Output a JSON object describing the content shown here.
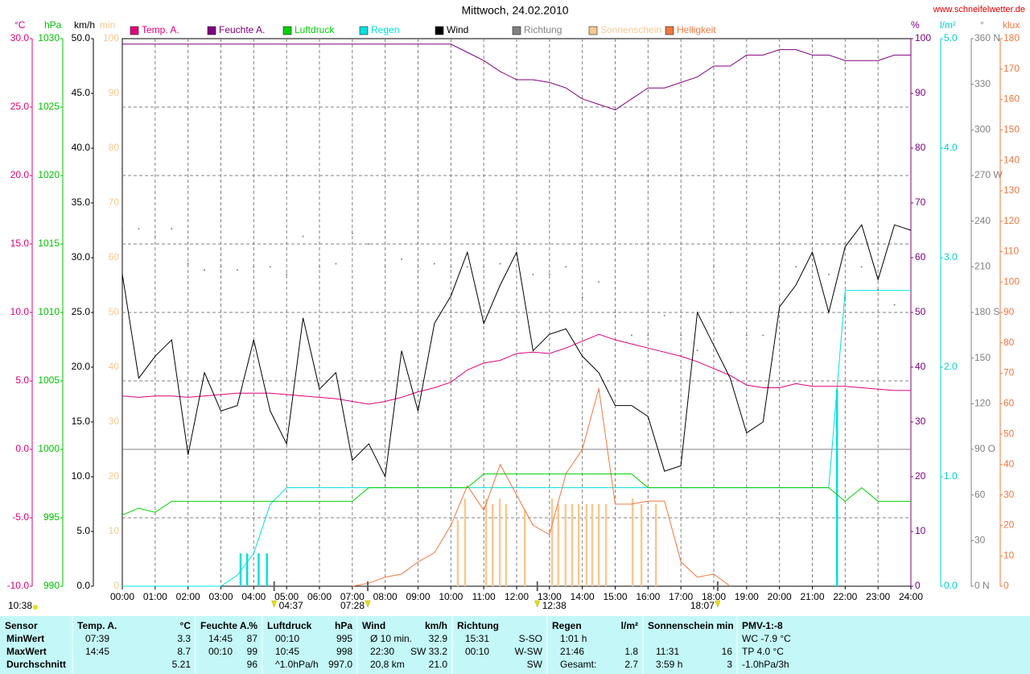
{
  "chart_data": {
    "type": "line",
    "title": "Mittwoch, 24.02.2010",
    "source": "www.schneifelwetter.de",
    "xlim": [
      0,
      24
    ],
    "xticks": [
      {
        "value": 0,
        "label": "00:00"
      },
      {
        "value": 1,
        "label": "01:00"
      },
      {
        "value": 2,
        "label": "02:00"
      },
      {
        "value": 3,
        "label": "03:00"
      },
      {
        "value": 4,
        "label": "04:00"
      },
      {
        "value": 5,
        "label": "05:00"
      },
      {
        "value": 6,
        "label": "06:00"
      },
      {
        "value": 7,
        "label": "07:00"
      },
      {
        "value": 8,
        "label": "08:00"
      },
      {
        "value": 9,
        "label": "09:00"
      },
      {
        "value": 10,
        "label": "10:00"
      },
      {
        "value": 11,
        "label": "11:00"
      },
      {
        "value": 12,
        "label": "12:00"
      },
      {
        "value": 13,
        "label": "13:00"
      },
      {
        "value": 14,
        "label": "14:00"
      },
      {
        "value": 15,
        "label": "15:00"
      },
      {
        "value": 16,
        "label": "16:00"
      },
      {
        "value": 17,
        "label": "17:00"
      },
      {
        "value": 18,
        "label": "18:00"
      },
      {
        "value": 19,
        "label": "19:00"
      },
      {
        "value": 20,
        "label": "20:00"
      },
      {
        "value": 21,
        "label": "21:00"
      },
      {
        "value": 22,
        "label": "22:00"
      },
      {
        "value": 23,
        "label": "23:00"
      },
      {
        "value": 24,
        "label": "24:00"
      }
    ],
    "grid": true,
    "axes": [
      {
        "unit": "°C",
        "color": "#e0007a",
        "lim": [
          -10,
          30
        ],
        "ticks": [
          {
            "value": -10,
            "label": "-10.0"
          },
          {
            "value": -5,
            "label": "-5.0"
          },
          {
            "value": 0,
            "label": "0.0"
          },
          {
            "value": 5,
            "label": "5.0"
          },
          {
            "value": 10,
            "label": "10.0"
          },
          {
            "value": 15,
            "label": "15.0"
          },
          {
            "value": 20,
            "label": "20.0"
          },
          {
            "value": 25,
            "label": "25.0"
          },
          {
            "value": 30,
            "label": "30.0"
          }
        ]
      },
      {
        "unit": "hPa",
        "color": "#00c000",
        "lim": [
          990,
          1030
        ],
        "ticks": [
          990,
          995,
          1000,
          1005,
          1010,
          1015,
          1020,
          1025,
          1030
        ]
      },
      {
        "unit": "km/h",
        "color": "#000000",
        "lim": [
          0,
          50
        ],
        "ticks": [
          {
            "value": 0,
            "label": "0.0"
          },
          {
            "value": 5,
            "label": "5.0"
          },
          {
            "value": 10,
            "label": "10.0"
          },
          {
            "value": 15,
            "label": "15.0"
          },
          {
            "value": 20,
            "label": "20.0"
          },
          {
            "value": 25,
            "label": "25.0"
          },
          {
            "value": 30,
            "label": "30.0"
          },
          {
            "value": 35,
            "label": "35.0"
          },
          {
            "value": 40,
            "label": "40.0"
          },
          {
            "value": 45,
            "label": "45.0"
          },
          {
            "value": 50,
            "label": "50.0"
          }
        ]
      },
      {
        "unit": "min",
        "color": "#f8c890",
        "lim": [
          0,
          100
        ],
        "ticks": [
          0,
          10,
          20,
          30,
          40,
          50,
          60,
          70,
          80,
          90,
          100
        ]
      },
      {
        "unit": "%",
        "color": "#800080",
        "lim": [
          0,
          100
        ],
        "ticks": [
          0,
          10,
          20,
          30,
          40,
          50,
          60,
          70,
          80,
          90,
          100
        ]
      },
      {
        "unit": "l/m²",
        "color": "#00d0d0",
        "lim": [
          0,
          5
        ],
        "ticks": [
          {
            "value": 0,
            "label": "0.0"
          },
          {
            "value": 1,
            "label": "1.0"
          },
          {
            "value": 2,
            "label": "2.0"
          },
          {
            "value": 3,
            "label": "3.0"
          },
          {
            "value": 4,
            "label": "4.0"
          },
          {
            "value": 5,
            "label": "5.0"
          }
        ]
      },
      {
        "unit": "°",
        "color": "#808080",
        "lim": [
          0,
          360
        ],
        "ticks": [
          {
            "value": 0,
            "label": "0 N"
          },
          30,
          60,
          {
            "value": 90,
            "label": "90 O"
          },
          120,
          150,
          {
            "value": 180,
            "label": "180 S"
          },
          210,
          240,
          {
            "value": 270,
            "label": "270 W"
          },
          300,
          330,
          {
            "value": 360,
            "label": "360 N"
          }
        ]
      },
      {
        "unit": "klux",
        "color": "#f07840",
        "lim": [
          0,
          180
        ],
        "ticks": [
          0,
          10,
          20,
          30,
          40,
          50,
          60,
          70,
          80,
          90,
          100,
          110,
          120,
          130,
          140,
          150,
          160,
          170,
          180
        ]
      }
    ],
    "x": [
      0,
      0.5,
      1,
      1.5,
      2,
      2.5,
      3,
      3.5,
      4,
      4.5,
      5,
      5.5,
      6,
      6.5,
      7,
      7.5,
      8,
      8.5,
      9,
      9.5,
      10,
      10.5,
      11,
      11.5,
      12,
      12.5,
      13,
      13.5,
      14,
      14.5,
      15,
      15.5,
      16,
      16.5,
      17,
      17.5,
      18,
      18.5,
      19,
      19.5,
      20,
      20.5,
      21,
      21.5,
      22,
      22.5,
      23,
      23.5,
      24
    ],
    "series": [
      {
        "name": "Temp. A.",
        "color": "#e0007a",
        "axis": 0,
        "style": "line",
        "values": [
          3.9,
          3.8,
          3.9,
          3.9,
          3.8,
          3.9,
          4.0,
          4.1,
          4.1,
          4.1,
          4.0,
          3.9,
          3.8,
          3.7,
          3.5,
          3.3,
          3.5,
          3.8,
          4.2,
          4.5,
          4.9,
          5.8,
          6.3,
          6.5,
          7.0,
          7.1,
          7.0,
          7.4,
          7.9,
          8.4,
          8.0,
          7.7,
          7.4,
          7.1,
          6.8,
          6.4,
          5.9,
          5.4,
          4.7,
          4.5,
          4.5,
          4.8,
          4.6,
          4.6,
          4.6,
          4.5,
          4.4,
          4.3,
          4.3
        ]
      },
      {
        "name": "Feuchte A.",
        "color": "#800080",
        "axis": 4,
        "style": "line",
        "values": [
          99,
          99,
          99,
          99,
          99,
          99,
          99,
          99,
          99,
          99,
          99,
          99,
          99,
          99,
          99,
          99,
          99,
          99,
          99,
          99,
          99,
          97.5,
          96,
          94,
          92.5,
          92.5,
          92,
          91,
          89,
          88,
          87,
          89,
          91,
          91,
          92,
          93,
          95,
          95,
          97,
          97,
          98,
          98,
          97,
          97,
          96,
          96,
          96,
          97,
          97
        ]
      },
      {
        "name": "Luftdruck",
        "color": "#00d000",
        "axis": 1,
        "style": "line",
        "values": [
          995.2,
          995.7,
          995.4,
          996.2,
          996.2,
          996.2,
          996.2,
          996.2,
          996.2,
          996.2,
          996.2,
          996.2,
          996.2,
          996.2,
          996.2,
          997.2,
          997.2,
          997.2,
          997.2,
          997.2,
          997.2,
          997.2,
          998.2,
          998.2,
          998.2,
          998.2,
          998.2,
          998.2,
          998.2,
          998.2,
          998.2,
          998.2,
          997.2,
          997.2,
          997.2,
          997.2,
          997.2,
          997.2,
          997.2,
          997.2,
          997.2,
          997.2,
          997.2,
          997.2,
          996.2,
          997.2,
          996.2,
          996.2,
          996.2
        ]
      },
      {
        "name": "Regen",
        "color": "#00e0e0",
        "axis": 5,
        "style": "line",
        "values": [
          0,
          0,
          0,
          0,
          0,
          0,
          0,
          0.1,
          0.3,
          0.75,
          0.9,
          0.9,
          0.9,
          0.9,
          0.9,
          0.9,
          0.9,
          0.9,
          0.9,
          0.9,
          0.9,
          0.9,
          0.9,
          0.9,
          0.9,
          0.9,
          0.9,
          0.9,
          0.9,
          0.9,
          0.9,
          0.9,
          0.9,
          0.9,
          0.9,
          0.9,
          0.9,
          0.9,
          0.9,
          0.9,
          0.9,
          0.9,
          0.9,
          0.9,
          2.7,
          2.7,
          2.7,
          2.7,
          2.7
        ],
        "bars": {
          "x": [
            3.6,
            3.8,
            4.15,
            4.4,
            21.75
          ],
          "values": [
            0.3,
            0.3,
            0.3,
            0.3,
            1.8
          ]
        }
      },
      {
        "name": "Wind",
        "color": "#000000",
        "axis": 2,
        "style": "line",
        "values": [
          28.5,
          19,
          21,
          22.5,
          12,
          19.5,
          16,
          16.5,
          22.5,
          16,
          13,
          24.5,
          18,
          19.5,
          11.5,
          13,
          10,
          21.5,
          16,
          24,
          26.5,
          30.5,
          24,
          27.5,
          30.5,
          21.5,
          23,
          23.5,
          21,
          19.5,
          16.5,
          16.5,
          15.5,
          10.5,
          11,
          25,
          22,
          19,
          14,
          15,
          25.5,
          27.5,
          30.5,
          25,
          31,
          33,
          28,
          33,
          32.5
        ]
      },
      {
        "name": "Richtung",
        "color": "#808080",
        "axis": 6,
        "style": "dots",
        "values": [
          238,
          235,
          230,
          235,
          212,
          208,
          210,
          208,
          210,
          210,
          205,
          230,
          210,
          212,
          232,
          225,
          210,
          215,
          210,
          212,
          210,
          210,
          210,
          212,
          225,
          205,
          205,
          210,
          190,
          200,
          180,
          165,
          165,
          178,
          165,
          155,
          210,
          180,
          165,
          165,
          180,
          210,
          215,
          205,
          190,
          210,
          195,
          185,
          210
        ]
      },
      {
        "name": "Sonnenschein",
        "color": "#f8c890",
        "axis": 3,
        "style": "bars",
        "x": [
          10.21,
          10.43,
          11.07,
          11.27,
          11.49,
          11.68,
          12.25,
          13.08,
          13.27,
          13.49,
          13.69,
          13.89,
          14.13,
          14.3,
          14.5,
          14.72,
          15.53,
          15.8,
          16.24
        ],
        "values": [
          12,
          16,
          16,
          15,
          16,
          15,
          14,
          16,
          15,
          15,
          15,
          15,
          15,
          15,
          15,
          15,
          16,
          15,
          15
        ]
      },
      {
        "name": "Helligkeit",
        "color": "#f07840",
        "axis": 7,
        "style": "line",
        "values": [
          null,
          null,
          null,
          null,
          null,
          null,
          null,
          null,
          null,
          null,
          null,
          null,
          null,
          null,
          0,
          1,
          3,
          4,
          8,
          11,
          20,
          33,
          25,
          40,
          30,
          20,
          17,
          37,
          45,
          65,
          27,
          27,
          28,
          28,
          8,
          3,
          4,
          0,
          null,
          null,
          null,
          null,
          null,
          null,
          null,
          null,
          null,
          null,
          null
        ]
      }
    ],
    "annotations": [
      {
        "label": "10:38"
      },
      {
        "label": "04:37",
        "x": 4.62
      },
      {
        "label": "07:28",
        "x": 7.47
      },
      {
        "label": "12:38",
        "x": 12.63
      },
      {
        "label": "18:07",
        "x": 18.12
      }
    ]
  },
  "table": {
    "columns": [
      {
        "title": "Sensor",
        "rows": [
          [
            "MinWert"
          ],
          [
            "MaxWert"
          ],
          [
            "Durchschnitt"
          ]
        ]
      },
      {
        "title": "Temp. A.",
        "unit": "°C",
        "rows": [
          [
            "07:39",
            "3.3"
          ],
          [
            "14:45",
            "8.7"
          ],
          [
            null,
            "5.21"
          ]
        ]
      },
      {
        "title": "Feuchte A.",
        "unit": "%",
        "rows": [
          [
            "14:45",
            "87"
          ],
          [
            "00:10",
            "99"
          ],
          [
            null,
            "96"
          ]
        ]
      },
      {
        "title": "Luftdruck",
        "unit": "hPa",
        "rows": [
          [
            "00:10",
            "995"
          ],
          [
            "10:45",
            "998"
          ],
          [
            "^1.0hPa/h",
            "997.0"
          ]
        ]
      },
      {
        "title": "Wind",
        "unit": "km/h",
        "rows": [
          [
            "Ø 10 min.",
            "32.9"
          ],
          [
            "22:30",
            "SW 33.2"
          ],
          [
            "20,8 km",
            "21.0"
          ]
        ]
      },
      {
        "title": "Richtung",
        "rows": [
          [
            "15:31",
            "S-SO"
          ],
          [
            "00:10",
            "W-SW"
          ],
          [
            null,
            "SW"
          ]
        ]
      },
      {
        "title": "Regen",
        "unit": "l/m²",
        "rows": [
          [
            "1:01 h",
            null
          ],
          [
            "21:46",
            "1.8"
          ],
          [
            "Gesamt:",
            "2.7"
          ]
        ]
      },
      {
        "title": "Sonnenschein min",
        "rows": [
          [
            null,
            null
          ],
          [
            "11:31",
            "16"
          ],
          [
            "3:59 h",
            "3"
          ]
        ]
      },
      {
        "title": "PMV-1:-8",
        "rows": [
          [
            "WC -7.9 °C"
          ],
          [
            "TP 4.0 °C"
          ],
          [
            "-1.0hPa/3h"
          ]
        ]
      }
    ]
  }
}
